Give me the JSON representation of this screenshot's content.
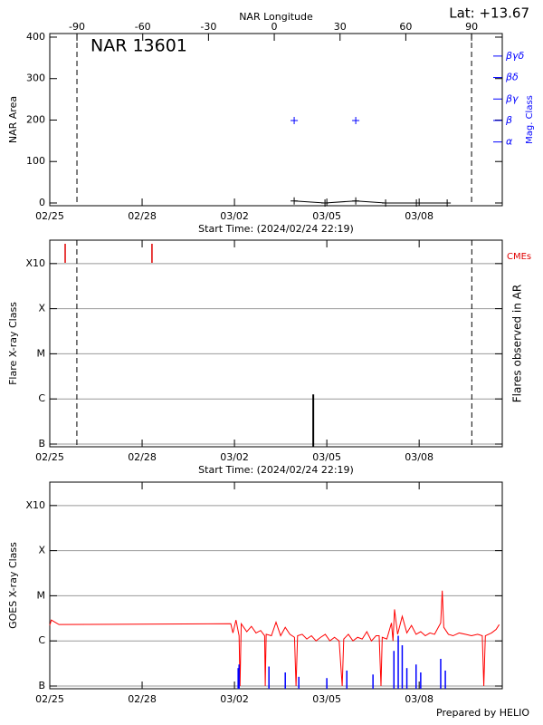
{
  "chart_data": [
    {
      "type": "line",
      "label": "NAR 13601",
      "latitude_label": "Lat: +13.67",
      "x2label": "NAR Longitude",
      "xlabel": "Start Time: (2024/02/24 22:19)",
      "ylabel": "NAR Area",
      "y2label": "Mag. Class",
      "y2_color": "#0000ff",
      "xlim": [
        0,
        14.7
      ],
      "xticks": [
        {
          "value": 0,
          "label": "02/25"
        },
        {
          "value": 3,
          "label": "02/28"
        },
        {
          "value": 6,
          "label": "03/02"
        },
        {
          "value": 9,
          "label": "03/05"
        },
        {
          "value": 12,
          "label": "03/08"
        }
      ],
      "x2lim": [
        -102.4,
        104.0
      ],
      "x2ticks": [
        -90,
        -60,
        -30,
        0,
        30,
        60,
        90
      ],
      "ylim": [
        -6.6,
        408.7
      ],
      "yticks": [
        0,
        100,
        200,
        300,
        400
      ],
      "y2lim": [
        -1.97,
        6.05
      ],
      "y2ticks": [
        {
          "value": 1,
          "label": "α"
        },
        {
          "value": 2,
          "label": "β"
        },
        {
          "value": 3,
          "label": "βγ"
        },
        {
          "value": 4,
          "label": "βδ"
        },
        {
          "value": 5,
          "label": "βγδ"
        }
      ],
      "grid": false,
      "limb_longitudes": [
        -90,
        90
      ],
      "series": [
        {
          "color": "#000000",
          "line": true,
          "marker": "plus",
          "x": [
            7.94,
            8.94,
            9.94,
            10.91,
            11.91,
            12.91
          ],
          "values": [
            5,
            0,
            5,
            0,
            0,
            0
          ]
        },
        {
          "color": "#0000ff",
          "axis": "y2",
          "line": false,
          "marker": "plus",
          "x": [
            7.94,
            9.94
          ],
          "values": [
            2,
            2
          ]
        }
      ]
    },
    {
      "type": "bar",
      "xlabel": "Start Time: (2024/02/24 22:19)",
      "ylabel": "Flare X-ray Class",
      "y2label": "Flares observed in AR",
      "xlim": [
        0,
        14.7
      ],
      "xticks": [
        {
          "value": 0,
          "label": "02/25"
        },
        {
          "value": 3,
          "label": "02/28"
        },
        {
          "value": 6,
          "label": "03/02"
        },
        {
          "value": 9,
          "label": "03/05"
        },
        {
          "value": 12,
          "label": "03/08"
        }
      ],
      "log_y": true,
      "ylim": [
        8.7e-08,
        0.0033
      ],
      "yticks": [
        {
          "value": 1e-07,
          "label": "B"
        },
        {
          "value": 1e-06,
          "label": "C"
        },
        {
          "value": 1e-05,
          "label": "M"
        },
        {
          "value": 0.0001,
          "label": "X"
        },
        {
          "value": 0.001,
          "label": "X10"
        }
      ],
      "grid": true,
      "limb_x": [
        0.88,
        13.71
      ],
      "series": [
        {
          "color": "#000000",
          "x": [
            8.56
          ],
          "values": [
            1.26e-06
          ]
        },
        {
          "name": "CMEs",
          "color": "#e00000",
          "x": [
            0.5,
            3.32
          ]
        }
      ]
    },
    {
      "type": "line",
      "ylabel": "GOES X-ray Class",
      "xlim": [
        0,
        14.7
      ],
      "xticks": [
        {
          "value": 0,
          "label": "02/25"
        },
        {
          "value": 3,
          "label": "02/28"
        },
        {
          "value": 6,
          "label": "03/02"
        },
        {
          "value": 9,
          "label": "03/05"
        },
        {
          "value": 12,
          "label": "03/08"
        }
      ],
      "log_y": true,
      "ylim": [
        8.7e-08,
        0.0033
      ],
      "yticks": [
        {
          "value": 1e-07,
          "label": "B"
        },
        {
          "value": 1e-06,
          "label": "C"
        },
        {
          "value": 1e-05,
          "label": "M"
        },
        {
          "value": 0.0001,
          "label": "X"
        },
        {
          "value": 0.001,
          "label": "X10"
        }
      ],
      "grid": true,
      "series": [
        {
          "color": "#ff0000",
          "line": true,
          "x": [
            0,
            0.05,
            0.3,
            5.88,
            5.95,
            6.05,
            6.15,
            6.18,
            6.22,
            6.4,
            6.55,
            6.7,
            6.85,
            6.98,
            7.0,
            7.03,
            7.2,
            7.35,
            7.5,
            7.65,
            7.8,
            7.95,
            8.0,
            8.05,
            8.2,
            8.35,
            8.5,
            8.65,
            8.8,
            8.95,
            9.1,
            9.25,
            9.4,
            9.5,
            9.55,
            9.7,
            9.85,
            10.0,
            10.15,
            10.3,
            10.45,
            10.6,
            10.7,
            10.76,
            10.8,
            10.95,
            11.1,
            11.15,
            11.2,
            11.3,
            11.45,
            11.6,
            11.75,
            11.9,
            12.05,
            12.2,
            12.35,
            12.5,
            12.7,
            12.75,
            12.8,
            12.95,
            13.1,
            13.3,
            13.5,
            13.7,
            13.9,
            14.05,
            14.1,
            14.15,
            14.35,
            14.5,
            14.6
          ],
          "values": [
            2.2e-06,
            2.9e-06,
            2.3e-06,
            2.4e-06,
            1.5e-06,
            2.9e-06,
            1.3e-06,
            1e-07,
            2.4e-06,
            1.6e-06,
            2.1e-06,
            1.5e-06,
            1.7e-06,
            1.3e-06,
            1e-07,
            1.4e-06,
            1.3e-06,
            2.6e-06,
            1.3e-06,
            2e-06,
            1.4e-06,
            1.2e-06,
            1e-07,
            1.3e-06,
            1.4e-06,
            1.1e-06,
            1.3e-06,
            1e-06,
            1.2e-06,
            1.4e-06,
            1e-06,
            1.2e-06,
            1e-06,
            1e-07,
            1.1e-06,
            1.4e-06,
            1e-06,
            1.2e-06,
            1.1e-06,
            1.6e-06,
            1e-06,
            1.3e-06,
            1.3e-06,
            1e-07,
            1.2e-06,
            1.1e-06,
            2.5e-06,
            1e-06,
            5e-06,
            1.4e-06,
            3.5e-06,
            1.5e-06,
            2.2e-06,
            1.4e-06,
            1.6e-06,
            1.3e-06,
            1.5e-06,
            1.4e-06,
            2.5e-06,
            1.3e-05,
            2e-06,
            1.4e-06,
            1.3e-06,
            1.5e-06,
            1.4e-06,
            1.3e-06,
            1.4e-06,
            1.3e-06,
            1e-07,
            1.3e-06,
            1.5e-06,
            1.8e-06,
            2.3e-06
          ]
        },
        {
          "color": "#0000ff",
          "line": false,
          "spikes": true,
          "x": [
            6.12,
            6.15,
            7.12,
            7.65,
            8.09,
            9.0,
            9.65,
            10.5,
            11.18,
            11.32,
            11.45,
            11.6,
            11.9,
            12.05,
            12.7,
            12.85
          ],
          "values": [
            2.5e-07,
            3e-07,
            2.7e-07,
            2e-07,
            1.6e-07,
            1.5e-07,
            2.2e-07,
            1.8e-07,
            6e-07,
            1.3e-06,
            8e-07,
            2.5e-07,
            3e-07,
            2e-07,
            4e-07,
            2.2e-07
          ]
        }
      ]
    }
  ],
  "footer": "Prepared by HELIO"
}
